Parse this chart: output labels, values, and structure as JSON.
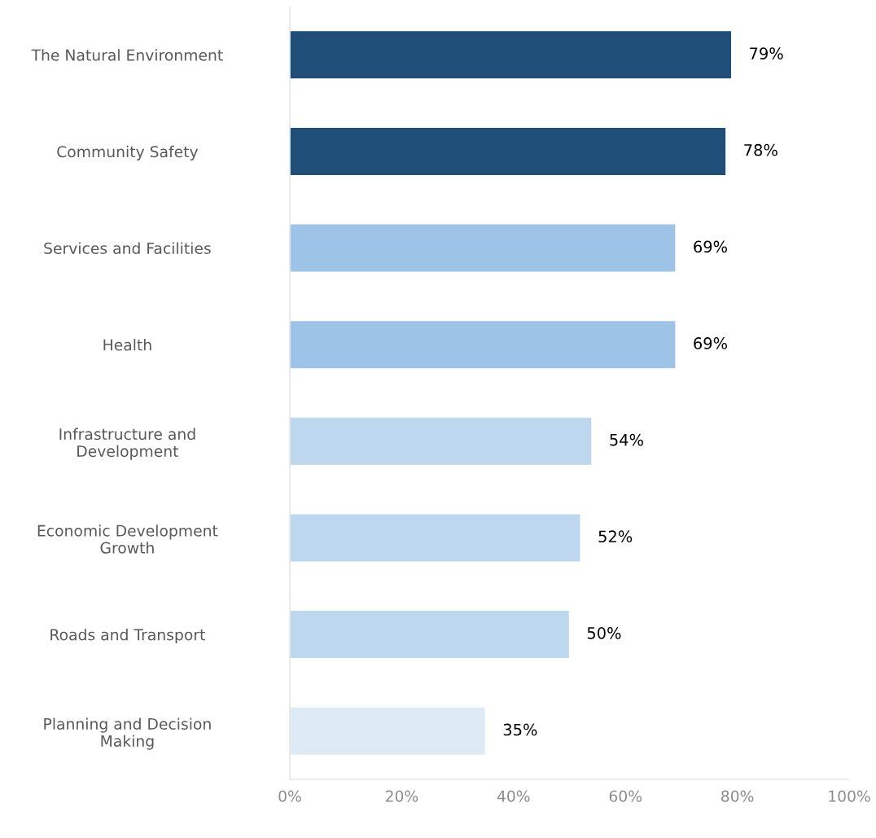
{
  "chart_data": {
    "type": "bar",
    "orientation": "horizontal",
    "categories": [
      "The Natural Environment",
      "Community Safety",
      "Services and Facilities",
      "Health",
      "Infrastructure and\nDevelopment",
      "Economic Development\nGrowth",
      "Roads and Transport",
      "Planning and Decision\nMaking"
    ],
    "values": [
      79,
      78,
      69,
      69,
      54,
      52,
      50,
      35
    ],
    "colors": [
      "#1f4e79",
      "#1f4e79",
      "#9dc3e6",
      "#9dc3e6",
      "#bdd7ee",
      "#bdd7ee",
      "#bdd7ee",
      "#deebf7"
    ],
    "value_labels": [
      "79%",
      "78%",
      "69%",
      "69%",
      "54%",
      "52%",
      "50%",
      "35%"
    ],
    "xlim": [
      0,
      100
    ],
    "xticks": [
      {
        "value": 0,
        "label": "0%"
      },
      {
        "value": 20,
        "label": "20%"
      },
      {
        "value": 40,
        "label": "40%"
      },
      {
        "value": 60,
        "label": "60%"
      },
      {
        "value": 80,
        "label": "80%"
      },
      {
        "value": 100,
        "label": "100%"
      }
    ],
    "grid": false,
    "legend": false
  }
}
